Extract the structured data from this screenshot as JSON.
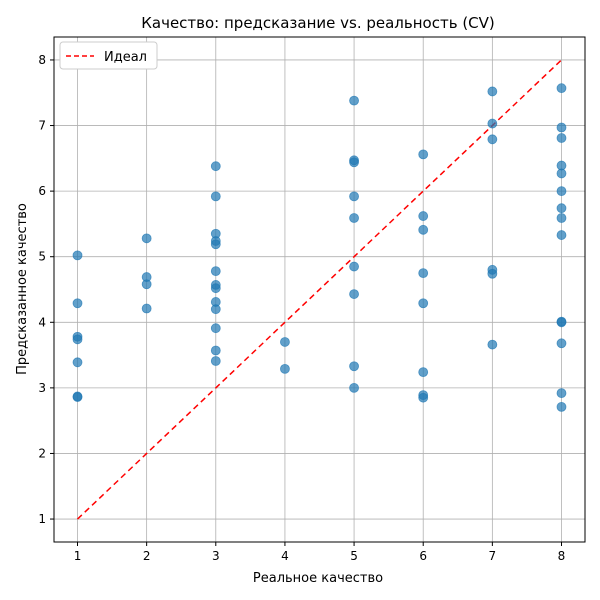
{
  "chart_data": {
    "type": "scatter",
    "title": "Качество: предсказание vs. реальность (CV)",
    "xlabel": "Реальное качество",
    "ylabel": "Предсказанное качество",
    "xlim": [
      0.66,
      8.34
    ],
    "ylim": [
      0.65,
      8.35
    ],
    "xticks": [
      "1",
      "2",
      "3",
      "4",
      "5",
      "6",
      "7",
      "8"
    ],
    "yticks": [
      "1",
      "2",
      "3",
      "4",
      "5",
      "6",
      "7",
      "8"
    ],
    "grid": true,
    "legend": {
      "placement": "top-left",
      "entries": [
        "Идеал"
      ]
    },
    "colors": {
      "points": "#1f77b4",
      "ideal_line": "#ff0000",
      "grid": "#b0b0b0"
    },
    "ideal_line": {
      "x": [
        1,
        8
      ],
      "y": [
        1,
        8
      ],
      "style": "dashed"
    },
    "points": [
      [
        1,
        5.02
      ],
      [
        1,
        4.29
      ],
      [
        1,
        3.78
      ],
      [
        1,
        3.74
      ],
      [
        1,
        3.39
      ],
      [
        1,
        2.87
      ],
      [
        1,
        2.86
      ],
      [
        2,
        5.28
      ],
      [
        2,
        4.69
      ],
      [
        2,
        4.58
      ],
      [
        2,
        4.21
      ],
      [
        3,
        6.38
      ],
      [
        3,
        5.92
      ],
      [
        3,
        5.35
      ],
      [
        3,
        5.24
      ],
      [
        3,
        5.19
      ],
      [
        3,
        4.78
      ],
      [
        3,
        4.57
      ],
      [
        3,
        4.52
      ],
      [
        3,
        4.31
      ],
      [
        3,
        4.2
      ],
      [
        3,
        3.91
      ],
      [
        3,
        3.57
      ],
      [
        3,
        3.41
      ],
      [
        4,
        3.7
      ],
      [
        4,
        3.29
      ],
      [
        5,
        7.38
      ],
      [
        5,
        6.47
      ],
      [
        5,
        6.44
      ],
      [
        5,
        5.92
      ],
      [
        5,
        5.59
      ],
      [
        5,
        4.85
      ],
      [
        5,
        4.43
      ],
      [
        5,
        3.33
      ],
      [
        5,
        3.0
      ],
      [
        6,
        6.56
      ],
      [
        6,
        5.62
      ],
      [
        6,
        5.41
      ],
      [
        6,
        4.75
      ],
      [
        6,
        4.29
      ],
      [
        6,
        3.24
      ],
      [
        6,
        2.89
      ],
      [
        6,
        2.85
      ],
      [
        7,
        7.52
      ],
      [
        7,
        7.03
      ],
      [
        7,
        6.79
      ],
      [
        7,
        4.8
      ],
      [
        7,
        4.74
      ],
      [
        7,
        3.66
      ],
      [
        8,
        7.57
      ],
      [
        8,
        6.97
      ],
      [
        8,
        6.81
      ],
      [
        8,
        6.39
      ],
      [
        8,
        6.27
      ],
      [
        8,
        6.0
      ],
      [
        8,
        5.74
      ],
      [
        8,
        5.59
      ],
      [
        8,
        5.33
      ],
      [
        8,
        4.01
      ],
      [
        8,
        4.0
      ],
      [
        8,
        3.68
      ],
      [
        8,
        2.92
      ],
      [
        8,
        2.71
      ]
    ]
  }
}
